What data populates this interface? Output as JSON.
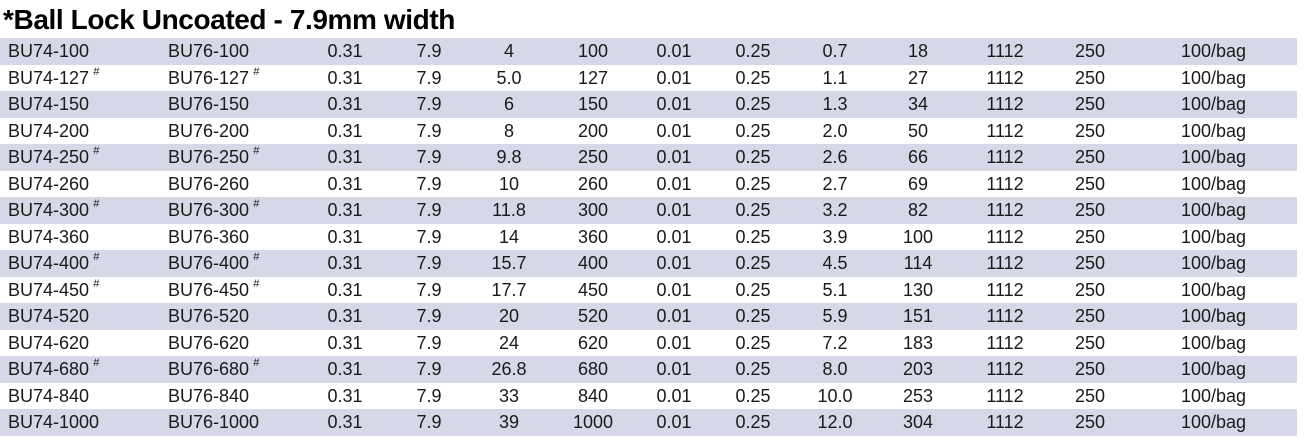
{
  "title": "*Ball Lock Uncoated - 7.9mm width",
  "colors": {
    "row_shaded": "#d6d8e7",
    "row_plain": "#ffffff",
    "text": "#1a1a1a"
  },
  "table": {
    "flag_mark": "#",
    "rows": [
      {
        "part1": "BU74-100",
        "part2": "BU76-100",
        "flag": false,
        "shaded": true,
        "values": [
          "0.31",
          "7.9",
          "4",
          "100",
          "0.01",
          "0.25",
          "0.7",
          "18",
          "1112",
          "250",
          "100/bag"
        ]
      },
      {
        "part1": "BU74-127",
        "part2": "BU76-127",
        "flag": true,
        "shaded": false,
        "values": [
          "0.31",
          "7.9",
          "5.0",
          "127",
          "0.01",
          "0.25",
          "1.1",
          "27",
          "1112",
          "250",
          "100/bag"
        ]
      },
      {
        "part1": "BU74-150",
        "part2": "BU76-150",
        "flag": false,
        "shaded": true,
        "values": [
          "0.31",
          "7.9",
          "6",
          "150",
          "0.01",
          "0.25",
          "1.3",
          "34",
          "1112",
          "250",
          "100/bag"
        ]
      },
      {
        "part1": "BU74-200",
        "part2": "BU76-200",
        "flag": false,
        "shaded": false,
        "values": [
          "0.31",
          "7.9",
          "8",
          "200",
          "0.01",
          "0.25",
          "2.0",
          "50",
          "1112",
          "250",
          "100/bag"
        ]
      },
      {
        "part1": "BU74-250",
        "part2": "BU76-250",
        "flag": true,
        "shaded": true,
        "values": [
          "0.31",
          "7.9",
          "9.8",
          "250",
          "0.01",
          "0.25",
          "2.6",
          "66",
          "1112",
          "250",
          "100/bag"
        ]
      },
      {
        "part1": "BU74-260",
        "part2": "BU76-260",
        "flag": false,
        "shaded": false,
        "values": [
          "0.31",
          "7.9",
          "10",
          "260",
          "0.01",
          "0.25",
          "2.7",
          "69",
          "1112",
          "250",
          "100/bag"
        ]
      },
      {
        "part1": "BU74-300",
        "part2": "BU76-300",
        "flag": true,
        "shaded": true,
        "values": [
          "0.31",
          "7.9",
          "11.8",
          "300",
          "0.01",
          "0.25",
          "3.2",
          "82",
          "1112",
          "250",
          "100/bag"
        ]
      },
      {
        "part1": "BU74-360",
        "part2": "BU76-360",
        "flag": false,
        "shaded": false,
        "values": [
          "0.31",
          "7.9",
          "14",
          "360",
          "0.01",
          "0.25",
          "3.9",
          "100",
          "1112",
          "250",
          "100/bag"
        ]
      },
      {
        "part1": "BU74-400",
        "part2": "BU76-400",
        "flag": true,
        "shaded": true,
        "values": [
          "0.31",
          "7.9",
          "15.7",
          "400",
          "0.01",
          "0.25",
          "4.5",
          "114",
          "1112",
          "250",
          "100/bag"
        ]
      },
      {
        "part1": "BU74-450",
        "part2": "BU76-450",
        "flag": true,
        "shaded": false,
        "values": [
          "0.31",
          "7.9",
          "17.7",
          "450",
          "0.01",
          "0.25",
          "5.1",
          "130",
          "1112",
          "250",
          "100/bag"
        ]
      },
      {
        "part1": "BU74-520",
        "part2": "BU76-520",
        "flag": false,
        "shaded": true,
        "values": [
          "0.31",
          "7.9",
          "20",
          "520",
          "0.01",
          "0.25",
          "5.9",
          "151",
          "1112",
          "250",
          "100/bag"
        ]
      },
      {
        "part1": "BU74-620",
        "part2": "BU76-620",
        "flag": false,
        "shaded": false,
        "values": [
          "0.31",
          "7.9",
          "24",
          "620",
          "0.01",
          "0.25",
          "7.2",
          "183",
          "1112",
          "250",
          "100/bag"
        ]
      },
      {
        "part1": "BU74-680",
        "part2": "BU76-680",
        "flag": true,
        "shaded": true,
        "values": [
          "0.31",
          "7.9",
          "26.8",
          "680",
          "0.01",
          "0.25",
          "8.0",
          "203",
          "1112",
          "250",
          "100/bag"
        ]
      },
      {
        "part1": "BU74-840",
        "part2": "BU76-840",
        "flag": false,
        "shaded": false,
        "values": [
          "0.31",
          "7.9",
          "33",
          "840",
          "0.01",
          "0.25",
          "10.0",
          "253",
          "1112",
          "250",
          "100/bag"
        ]
      },
      {
        "part1": "BU74-1000",
        "part2": "BU76-1000",
        "flag": false,
        "shaded": true,
        "values": [
          "0.31",
          "7.9",
          "39",
          "1000",
          "0.01",
          "0.25",
          "12.0",
          "304",
          "1112",
          "250",
          "100/bag"
        ]
      }
    ]
  }
}
